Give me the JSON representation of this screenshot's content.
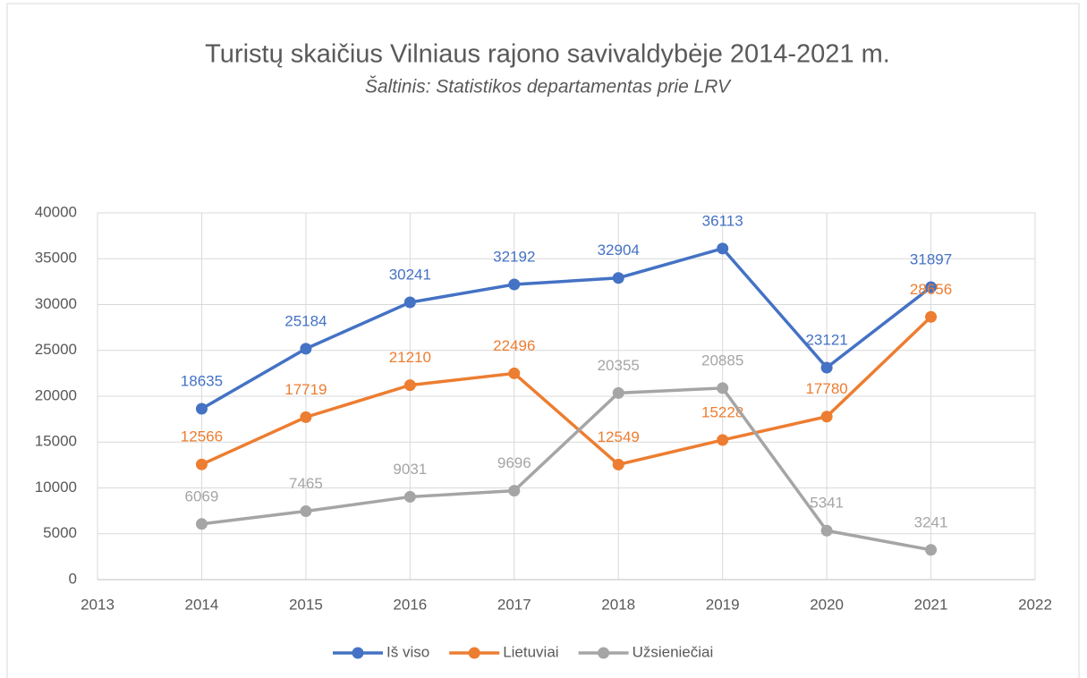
{
  "chart_data": {
    "type": "line",
    "title": "Turistų skaičius Vilniaus rajono savivaldybėje 2014-2021 m.",
    "subtitle": "Šaltinis: Statistikos departamentas prie LRV",
    "x": [
      2014,
      2015,
      2016,
      2017,
      2018,
      2019,
      2020,
      2021
    ],
    "series": [
      {
        "name": "Iš viso",
        "color": "#4472c4",
        "values": [
          18635,
          25184,
          30241,
          32192,
          32904,
          36113,
          23121,
          31897
        ]
      },
      {
        "name": "Lietuviai",
        "color": "#ed7d31",
        "values": [
          12566,
          17719,
          21210,
          22496,
          12549,
          15228,
          17780,
          28656
        ]
      },
      {
        "name": "Užsieniečiai",
        "color": "#a5a5a5",
        "values": [
          6069,
          7465,
          9031,
          9696,
          20355,
          20885,
          5341,
          3241
        ]
      }
    ],
    "xlim": [
      2013,
      2022
    ],
    "xticks": [
      2013,
      2014,
      2015,
      2016,
      2017,
      2018,
      2019,
      2020,
      2021,
      2022
    ],
    "ylim": [
      0,
      40000
    ],
    "yticks": [
      0,
      5000,
      10000,
      15000,
      20000,
      25000,
      30000,
      35000,
      40000
    ],
    "grid": true,
    "legend": "bottom"
  }
}
